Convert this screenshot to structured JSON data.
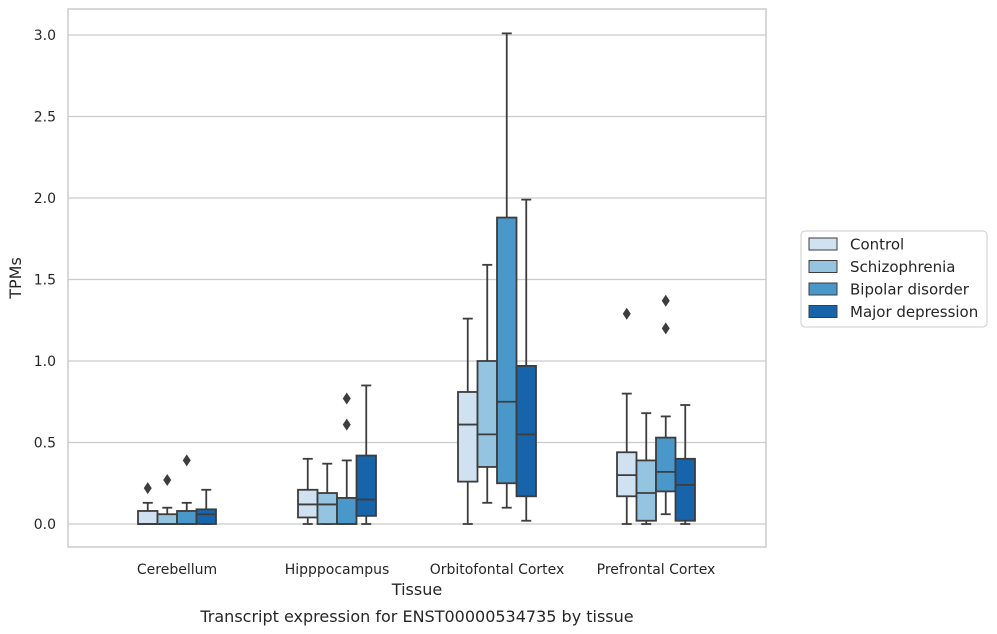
{
  "chart_data": {
    "type": "box",
    "title": "",
    "caption": "Transcript expression for ENST00000534735 by tissue",
    "xlabel": "Tissue",
    "ylabel": "TPMs",
    "ylim": [
      -0.15,
      3.17
    ],
    "yticks": [
      "0.0",
      "0.5",
      "1.0",
      "1.5",
      "2.0",
      "2.5",
      "3.0"
    ],
    "grid": true,
    "legend_position": "right",
    "categories": [
      "Cerebellum",
      "Hipppocampus",
      "Orbitofontal Cortex",
      "Prefrontal Cortex"
    ],
    "series": [
      {
        "name": "Control",
        "color": "#d0e1f2",
        "boxes": [
          {
            "min": 0.0,
            "q1": 0.0,
            "median": 0.0,
            "q3": 0.08,
            "max": 0.13,
            "outliers": [
              0.22
            ]
          },
          {
            "min": 0.0,
            "q1": 0.04,
            "median": 0.12,
            "q3": 0.21,
            "max": 0.4,
            "outliers": []
          },
          {
            "min": 0.0,
            "q1": 0.26,
            "median": 0.61,
            "q3": 0.81,
            "max": 1.26,
            "outliers": []
          },
          {
            "min": 0.0,
            "q1": 0.17,
            "median": 0.3,
            "q3": 0.44,
            "max": 0.8,
            "outliers": [
              1.29
            ]
          }
        ]
      },
      {
        "name": "Schizophrenia",
        "color": "#94c4df",
        "boxes": [
          {
            "min": 0.0,
            "q1": 0.0,
            "median": 0.0,
            "q3": 0.06,
            "max": 0.1,
            "outliers": [
              0.27
            ]
          },
          {
            "min": 0.0,
            "q1": 0.0,
            "median": 0.12,
            "q3": 0.19,
            "max": 0.37,
            "outliers": []
          },
          {
            "min": 0.13,
            "q1": 0.35,
            "median": 0.55,
            "q3": 1.0,
            "max": 1.59,
            "outliers": []
          },
          {
            "min": 0.0,
            "q1": 0.02,
            "median": 0.19,
            "q3": 0.39,
            "max": 0.68,
            "outliers": []
          }
        ]
      },
      {
        "name": "Bipolar disorder",
        "color": "#4a98c9",
        "boxes": [
          {
            "min": 0.0,
            "q1": 0.0,
            "median": 0.0,
            "q3": 0.08,
            "max": 0.13,
            "outliers": [
              0.39
            ]
          },
          {
            "min": 0.0,
            "q1": 0.0,
            "median": 0.0,
            "q3": 0.16,
            "max": 0.39,
            "outliers": [
              0.61,
              0.77
            ]
          },
          {
            "min": 0.1,
            "q1": 0.25,
            "median": 0.75,
            "q3": 1.88,
            "max": 3.01,
            "outliers": []
          },
          {
            "min": 0.06,
            "q1": 0.2,
            "median": 0.32,
            "q3": 0.53,
            "max": 0.66,
            "outliers": [
              1.2,
              1.37
            ]
          }
        ]
      },
      {
        "name": "Major depression",
        "color": "#1764ab",
        "boxes": [
          {
            "min": 0.0,
            "q1": 0.0,
            "median": 0.06,
            "q3": 0.09,
            "max": 0.21,
            "outliers": []
          },
          {
            "min": 0.0,
            "q1": 0.05,
            "median": 0.15,
            "q3": 0.42,
            "max": 0.85,
            "outliers": []
          },
          {
            "min": 0.02,
            "q1": 0.17,
            "median": 0.55,
            "q3": 0.97,
            "max": 1.99,
            "outliers": []
          },
          {
            "min": 0.0,
            "q1": 0.02,
            "median": 0.24,
            "q3": 0.4,
            "max": 0.73,
            "outliers": []
          }
        ]
      }
    ]
  }
}
